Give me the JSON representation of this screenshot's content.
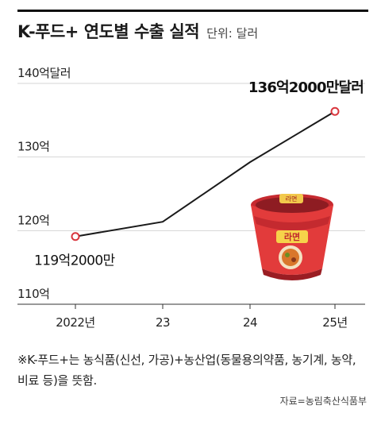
{
  "header": {
    "title": "K-푸드+ 연도별 수출 실적",
    "unit": "단위: 달러"
  },
  "chart_data": {
    "type": "line",
    "title": "K-푸드+ 연도별 수출 실적",
    "unit": "단위: 달러",
    "categories": [
      "2022년",
      "23",
      "24",
      "25년"
    ],
    "values": [
      119.2,
      121.2,
      129.3,
      136.2
    ],
    "ylim": [
      110,
      140
    ],
    "yticks": [
      {
        "value": 140,
        "label": "140억달러"
      },
      {
        "value": 130,
        "label": "130억"
      },
      {
        "value": 120,
        "label": "120억"
      },
      {
        "value": 110,
        "label": "110억"
      }
    ],
    "grid": true,
    "annotations": [
      {
        "index": 0,
        "label": "119억2000만"
      },
      {
        "index": 3,
        "label": "136억2000만달러"
      }
    ],
    "colors": {
      "line": "#1a1a1a",
      "grid": "#d6d6d6",
      "marker_fill": "#ffffff",
      "marker_stroke": "#d9363e"
    }
  },
  "footnote": "※K-푸드+는 농식품(신선, 가공)+농산업(동물용의약품, 농기계, 농약, 비료 등)을 뜻함.",
  "source": "자료=농림축산식품부",
  "illustration": {
    "cup_label": "라면",
    "cup_color": "#e23b3b"
  }
}
